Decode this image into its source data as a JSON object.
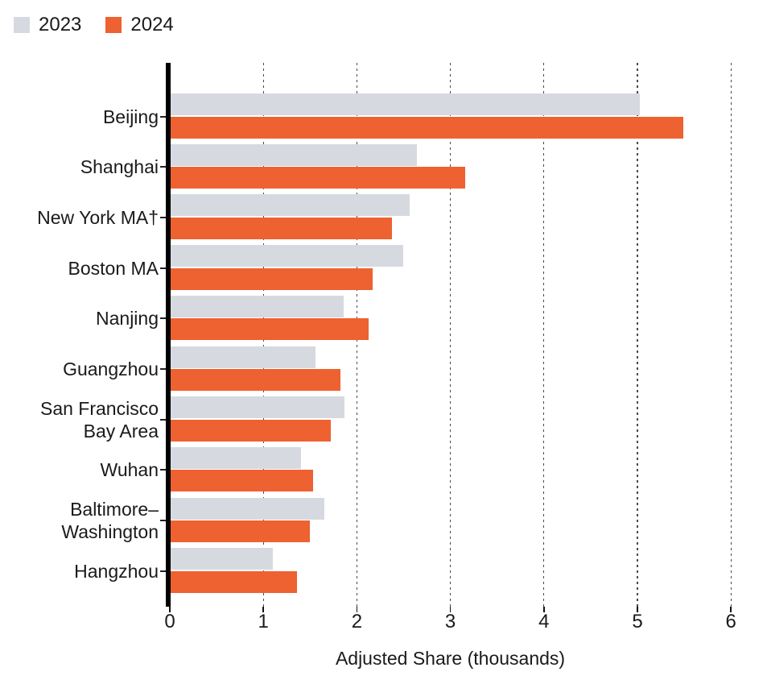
{
  "legend": {
    "items": [
      {
        "label": "2023",
        "color": "#d6dae0"
      },
      {
        "label": "2024",
        "color": "#ee6130"
      }
    ]
  },
  "chart_data": {
    "type": "bar",
    "orientation": "horizontal",
    "title": "",
    "xlabel": "Adjusted Share (thousands)",
    "ylabel": "",
    "xlim": [
      0,
      6.3
    ],
    "xticks": [
      "0",
      "1",
      "2",
      "3",
      "4",
      "5",
      "6"
    ],
    "grid": "vertical-dashed",
    "legend_position": "top-left",
    "categories": [
      "Beijing",
      "Shanghai",
      "New York MA†",
      "Boston MA",
      "Nanjing",
      "Guangzhou",
      "San Francisco Bay Area",
      "Wuhan",
      "Baltimore–Washington",
      "Hangzhou"
    ],
    "category_label_lines": [
      [
        "Beijing"
      ],
      [
        "Shanghai"
      ],
      [
        "New York MA†"
      ],
      [
        "Boston MA"
      ],
      [
        "Nanjing"
      ],
      [
        "Guangzhou"
      ],
      [
        "San Francisco",
        "Bay Area"
      ],
      [
        "Wuhan"
      ],
      [
        "Baltimore–",
        "Washington"
      ],
      [
        "Hangzhou"
      ]
    ],
    "series": [
      {
        "name": "2023",
        "color": "#d6dae0",
        "values": [
          5.02,
          2.63,
          2.56,
          2.49,
          1.85,
          1.55,
          1.86,
          1.39,
          1.64,
          1.09
        ]
      },
      {
        "name": "2024",
        "color": "#ee6130",
        "values": [
          5.48,
          3.15,
          2.37,
          2.16,
          2.12,
          1.82,
          1.71,
          1.52,
          1.49,
          1.35
        ]
      }
    ]
  },
  "colors": {
    "bar_2023": "#d6dae0",
    "bar_2024": "#ee6130",
    "axis": "#000000",
    "gridline": "#4a4a4a",
    "text": "#1a1a1a",
    "background": "#ffffff"
  }
}
